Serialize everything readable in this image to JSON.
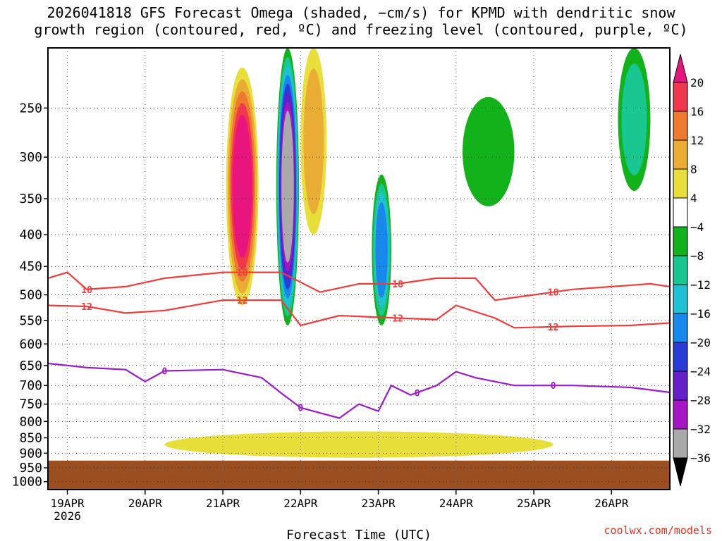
{
  "chart_data": {
    "type": "heatmap",
    "title": "2026041818 GFS Forecast Omega (shaded, −cm/s) for KPMD with dendritic snow growth region (contoured, red, ºC) and freezing level (contoured, purple, ºC)",
    "title_lines": [
      "2026041818 GFS Forecast Omega (shaded, −cm/s) for KPMD with dendritic snow",
      "growth region (contoured, red, ºC) and freezing level (contoured, purple, ºC)"
    ],
    "xlabel": "Forecast Time (UTC)",
    "ylabel": "",
    "credit": "coolwx.com/models",
    "x_range_hours_from_19apr00": [
      -6,
      186
    ],
    "x_ticks": [
      {
        "hour": 0,
        "label": "19APR",
        "sublabel": "2026"
      },
      {
        "hour": 24,
        "label": "20APR",
        "sublabel": ""
      },
      {
        "hour": 48,
        "label": "21APR",
        "sublabel": ""
      },
      {
        "hour": 72,
        "label": "22APR",
        "sublabel": ""
      },
      {
        "hour": 96,
        "label": "23APR",
        "sublabel": ""
      },
      {
        "hour": 120,
        "label": "24APR",
        "sublabel": ""
      },
      {
        "hour": 144,
        "label": "25APR",
        "sublabel": ""
      },
      {
        "hour": 168,
        "label": "26APR",
        "sublabel": ""
      }
    ],
    "y_axis": {
      "scale": "log-pressure",
      "range_hpa": [
        200,
        1030
      ],
      "ticks": [
        250,
        300,
        350,
        400,
        450,
        500,
        550,
        600,
        650,
        700,
        750,
        800,
        850,
        900,
        950,
        1000
      ]
    },
    "grid": true,
    "colorbar": {
      "labels": [
        "20",
        "16",
        "12",
        "8",
        "4",
        "−4",
        "−8",
        "−12",
        "−16",
        "−20",
        "−24",
        "−28",
        "−32",
        "−36"
      ],
      "bins": [
        {
          "range": "≥20",
          "color": "#e8157e"
        },
        {
          "range": "16–20",
          "color": "#f0374e"
        },
        {
          "range": "12–16",
          "color": "#ef7a2e"
        },
        {
          "range": "8–12",
          "color": "#e9ad35"
        },
        {
          "range": "4–8",
          "color": "#e8df3a"
        },
        {
          "range": "−4–4",
          "color": "#ffffff"
        },
        {
          "range": "−8–−4",
          "color": "#12b21a"
        },
        {
          "range": "−12–−8",
          "color": "#18c890"
        },
        {
          "range": "−16–−12",
          "color": "#1ec2d3"
        },
        {
          "range": "−20–−16",
          "color": "#1688ee"
        },
        {
          "range": "−24–−20",
          "color": "#2a3cd7"
        },
        {
          "range": "−28–−24",
          "color": "#6420c8"
        },
        {
          "range": "−32–−28",
          "color": "#a616c4"
        },
        {
          "range": "−36–−32",
          "color": "#a9a9a9"
        },
        {
          "range": "≤−36",
          "color": "#000000"
        }
      ]
    },
    "ground": {
      "surface_hpa": 925,
      "color": "#9b4f20"
    },
    "omega_features": [
      {
        "name": "positive-core-21apr",
        "hour_center": 54,
        "hour_halfwidth": 5,
        "p_top": 215,
        "p_bottom": 520,
        "value": 22
      },
      {
        "name": "negative-core-22apr",
        "hour_center": 68,
        "hour_halfwidth": 3.5,
        "p_top": 200,
        "p_bottom": 560,
        "value": -34
      },
      {
        "name": "negative-23apr",
        "hour_center": 97,
        "hour_halfwidth": 3,
        "p_top": 320,
        "p_bottom": 560,
        "value": -20
      },
      {
        "name": "positive-22apr-upper",
        "hour_center": 76,
        "hour_halfwidth": 4,
        "p_top": 200,
        "p_bottom": 400,
        "value": 13
      },
      {
        "name": "positive-low-level",
        "hour_center": 90,
        "hour_halfwidth": 60,
        "p_top": 830,
        "p_bottom": 915,
        "value": 6
      },
      {
        "name": "negative-24apr-upper",
        "hour_center": 130,
        "hour_halfwidth": 8,
        "p_top": 240,
        "p_bottom": 360,
        "value": -8
      },
      {
        "name": "negative-26apr",
        "hour_center": 175,
        "hour_halfwidth": 5,
        "p_top": 200,
        "p_bottom": 340,
        "value": -12
      }
    ],
    "contours": [
      {
        "name": "dendritic-18C",
        "label": "18",
        "color": "#f03c3c",
        "points": [
          [
            -6,
            470
          ],
          [
            0,
            460
          ],
          [
            6,
            490
          ],
          [
            18,
            485
          ],
          [
            30,
            470
          ],
          [
            48,
            460
          ],
          [
            66,
            460
          ],
          [
            78,
            495
          ],
          [
            90,
            480
          ],
          [
            102,
            480
          ],
          [
            114,
            470
          ],
          [
            120,
            470
          ],
          [
            126,
            470
          ],
          [
            132,
            510
          ],
          [
            144,
            500
          ],
          [
            156,
            490
          ],
          [
            168,
            485
          ],
          [
            180,
            480
          ],
          [
            186,
            485
          ]
        ],
        "label_hours": [
          6,
          54,
          102,
          150
        ]
      },
      {
        "name": "dendritic-12C",
        "label": "12",
        "color": "#f03c3c",
        "points": [
          [
            -6,
            520
          ],
          [
            6,
            522
          ],
          [
            18,
            535
          ],
          [
            30,
            530
          ],
          [
            48,
            510
          ],
          [
            66,
            510
          ],
          [
            72,
            560
          ],
          [
            84,
            540
          ],
          [
            102,
            545
          ],
          [
            114,
            548
          ],
          [
            120,
            520
          ],
          [
            132,
            545
          ],
          [
            138,
            565
          ],
          [
            156,
            562
          ],
          [
            174,
            560
          ],
          [
            186,
            555
          ]
        ],
        "label_hours": [
          6,
          54,
          102,
          150
        ]
      },
      {
        "name": "freezing-0C",
        "label": "0",
        "color": "#9a1bcc",
        "points": [
          [
            -6,
            645
          ],
          [
            6,
            655
          ],
          [
            18,
            660
          ],
          [
            24,
            690
          ],
          [
            30,
            663
          ],
          [
            48,
            660
          ],
          [
            60,
            680
          ],
          [
            66,
            720
          ],
          [
            72,
            760
          ],
          [
            78,
            775
          ],
          [
            84,
            790
          ],
          [
            90,
            750
          ],
          [
            96,
            770
          ],
          [
            100,
            700
          ],
          [
            106,
            725
          ],
          [
            114,
            700
          ],
          [
            120,
            665
          ],
          [
            126,
            680
          ],
          [
            138,
            700
          ],
          [
            156,
            700
          ],
          [
            174,
            705
          ],
          [
            186,
            718
          ]
        ],
        "label_hours": [
          30,
          72,
          108,
          150
        ]
      }
    ]
  }
}
